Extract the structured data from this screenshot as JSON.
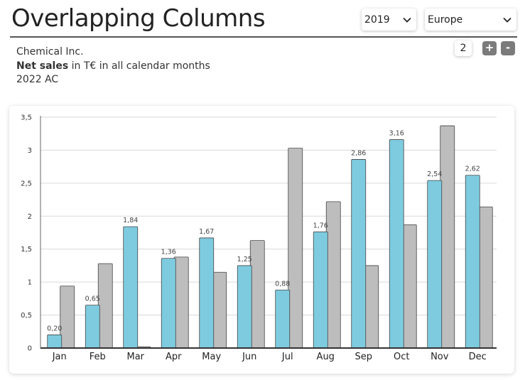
{
  "header": {
    "title": "Overlapping Columns",
    "year_select": {
      "value": "2019",
      "icon": "chevron-down-icon"
    },
    "region_select": {
      "value": "Europe",
      "icon": "chevron-down-icon"
    },
    "counter": {
      "value": "2",
      "plus_label": "+",
      "minus_label": "-"
    }
  },
  "subtitle": {
    "company": "Chemical Inc.",
    "measure_bold": "Net sales",
    "measure_rest": " in T€ in all calendar months",
    "scenario": "2022 AC"
  },
  "colors": {
    "actual": "#7ecbdf",
    "comparison": "#bdbdbd",
    "outline": "#444444",
    "grid": "#d9d9d9"
  },
  "chart_data": {
    "type": "bar",
    "categories": [
      "Jan",
      "Feb",
      "Mar",
      "Apr",
      "May",
      "Jun",
      "Jul",
      "Aug",
      "Sep",
      "Oct",
      "Nov",
      "Dec"
    ],
    "series": [
      {
        "values": [
          0.2,
          0.65,
          1.84,
          1.36,
          1.67,
          1.25,
          0.88,
          1.76,
          2.86,
          3.16,
          2.54,
          2.62
        ],
        "labels": [
          "0,20",
          "0,65",
          "1,84",
          "1,36",
          "1,67",
          "1,25",
          "0,88",
          "1,76",
          "2,86",
          "3,16",
          "2,54",
          "2,62"
        ]
      },
      {
        "values": [
          0.94,
          1.28,
          0.02,
          1.38,
          1.15,
          1.63,
          3.03,
          2.22,
          1.25,
          1.87,
          3.37,
          2.14
        ]
      }
    ],
    "yticks": [
      "0",
      "0,5",
      "1",
      "1,5",
      "2",
      "2,5",
      "3",
      "3,5"
    ],
    "ylim": [
      0,
      3.5
    ],
    "grid": true
  }
}
